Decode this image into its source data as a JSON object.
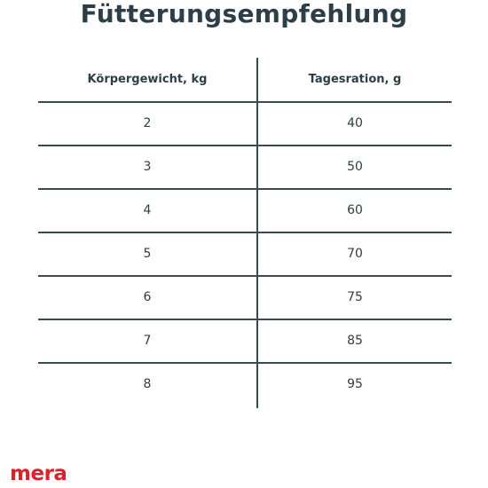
{
  "title": "Fütterungsempfehlung",
  "table": {
    "headers": [
      "Körpergewicht, kg",
      "Tagesration, g"
    ],
    "rows": [
      [
        "2",
        "40"
      ],
      [
        "3",
        "50"
      ],
      [
        "4",
        "60"
      ],
      [
        "5",
        "70"
      ],
      [
        "6",
        "75"
      ],
      [
        "7",
        "85"
      ],
      [
        "8",
        "95"
      ]
    ]
  },
  "brand": {
    "logo_text": "mera",
    "color": "#d8232a"
  },
  "colors": {
    "text": "#2c3e48",
    "lines": "#3a4a52"
  }
}
